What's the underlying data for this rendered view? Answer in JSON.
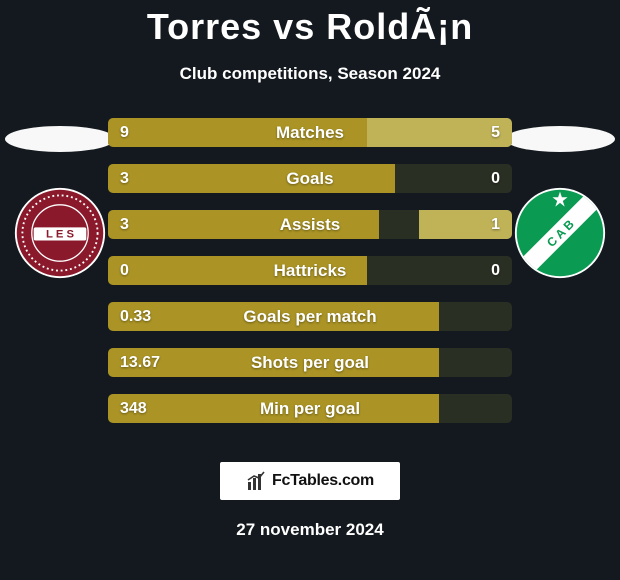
{
  "title": "Torres vs RoldÃ¡n",
  "subtitle": "Club competitions, Season 2024",
  "date": "27 november 2024",
  "branding_text": "FcTables.com",
  "colors": {
    "background": "#13191e",
    "bar_track": "#2a2f23",
    "player1": "#ab9425",
    "player2": "#c0b257",
    "silhouette1": "#f8f8f8",
    "silhouette2": "#f8f8f8",
    "text": "#ffffff"
  },
  "player1": {
    "name": "Torres",
    "club_name": "Lanús",
    "crest_primary": "#8a1a2b",
    "crest_secondary": "#ffffff"
  },
  "player2": {
    "name": "RoldÃ¡n",
    "club_name": "Banfield",
    "crest_primary": "#0a9a52",
    "crest_secondary": "#ffffff"
  },
  "stats": [
    {
      "label": "Matches",
      "v1": "9",
      "v2": "5",
      "f1": 0.64,
      "f2": 0.36
    },
    {
      "label": "Goals",
      "v1": "3",
      "v2": "0",
      "f1": 0.71,
      "f2": 0.0
    },
    {
      "label": "Assists",
      "v1": "3",
      "v2": "1",
      "f1": 0.67,
      "f2": 0.23
    },
    {
      "label": "Hattricks",
      "v1": "0",
      "v2": "0",
      "f1": 0.64,
      "f2": 0.0
    },
    {
      "label": "Goals per match",
      "v1": "0.33",
      "v2": "",
      "f1": 0.82,
      "f2": 0.0
    },
    {
      "label": "Shots per goal",
      "v1": "13.67",
      "v2": "",
      "f1": 0.82,
      "f2": 0.0
    },
    {
      "label": "Min per goal",
      "v1": "348",
      "v2": "",
      "f1": 0.82,
      "f2": 0.0
    }
  ]
}
